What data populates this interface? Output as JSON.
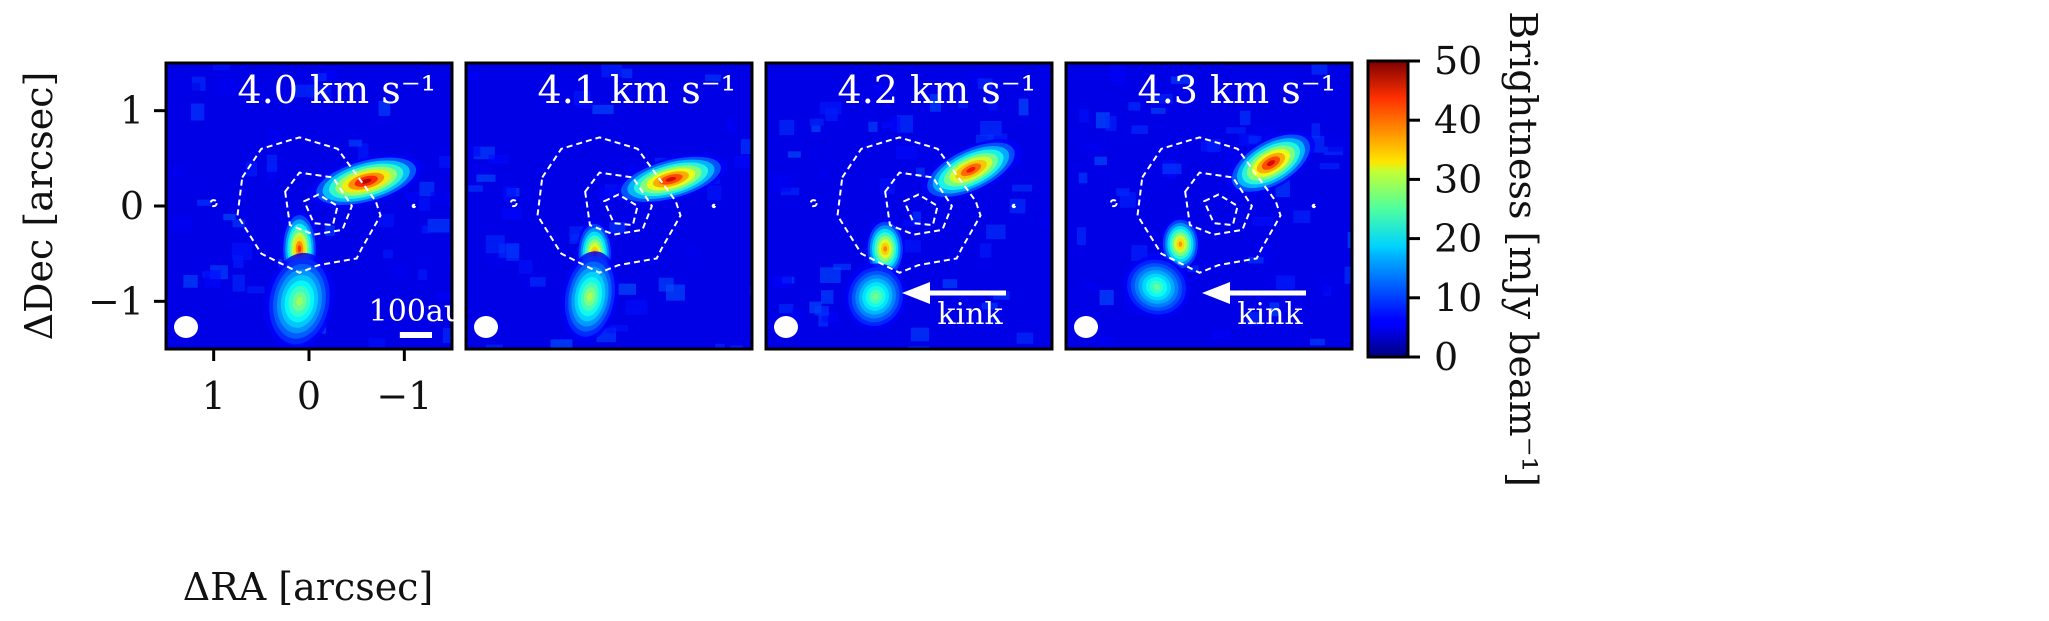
{
  "chart_data": {
    "type": "heatmap",
    "xlabel": "ΔRA [arcsec]",
    "ylabel": "ΔDec [arcsec]",
    "xlim": [
      1.5,
      -1.5
    ],
    "ylim": [
      -1.5,
      1.5
    ],
    "x_ticks": [
      {
        "value": 1,
        "label": "1"
      },
      {
        "value": 0,
        "label": "0"
      },
      {
        "value": -1,
        "label": "−1"
      }
    ],
    "y_ticks": [
      {
        "value": 1,
        "label": "1"
      },
      {
        "value": 0,
        "label": "0"
      },
      {
        "value": -1,
        "label": "−1"
      }
    ],
    "colorbar": {
      "label": "Brightness [mJy beam⁻¹]",
      "range": [
        0,
        50
      ],
      "colormap": "jet",
      "ticks": [
        {
          "value": 0,
          "label": "0"
        },
        {
          "value": 10,
          "label": "10"
        },
        {
          "value": 20,
          "label": "20"
        },
        {
          "value": 30,
          "label": "30"
        },
        {
          "value": 40,
          "label": "40"
        },
        {
          "value": 50,
          "label": "50"
        }
      ]
    },
    "scale_bar": {
      "label": "100au",
      "length_arcsec": 0.75
    },
    "panels": [
      {
        "title": "4.0 km s⁻¹",
        "annotation": "",
        "blobs": [
          {
            "x": -0.6,
            "y": 0.26,
            "sx": 0.38,
            "sy": 0.15,
            "peak": 48,
            "angle": -15
          },
          {
            "x": 0.1,
            "y": -0.45,
            "sx": 0.12,
            "sy": 0.25,
            "peak": 42,
            "angle": 0
          },
          {
            "x": 0.1,
            "y": -1.0,
            "sx": 0.22,
            "sy": 0.32,
            "peak": 27,
            "angle": 10
          }
        ]
      },
      {
        "title": "4.1 km s⁻¹",
        "annotation": "",
        "blobs": [
          {
            "x": -0.65,
            "y": 0.28,
            "sx": 0.38,
            "sy": 0.14,
            "peak": 46,
            "angle": -15
          },
          {
            "x": 0.15,
            "y": -0.5,
            "sx": 0.12,
            "sy": 0.22,
            "peak": 38,
            "angle": 0
          },
          {
            "x": 0.2,
            "y": -0.95,
            "sx": 0.18,
            "sy": 0.3,
            "peak": 28,
            "angle": 10
          }
        ]
      },
      {
        "title": "4.2 km s⁻¹",
        "annotation": "kink",
        "blobs": [
          {
            "x": -0.65,
            "y": 0.38,
            "sx": 0.35,
            "sy": 0.15,
            "peak": 44,
            "angle": -25
          },
          {
            "x": 0.25,
            "y": -0.45,
            "sx": 0.13,
            "sy": 0.2,
            "peak": 38,
            "angle": 0
          },
          {
            "x": 0.35,
            "y": -0.95,
            "sx": 0.2,
            "sy": 0.22,
            "peak": 25,
            "angle": 20
          }
        ]
      },
      {
        "title": "4.3 km s⁻¹",
        "annotation": "kink",
        "blobs": [
          {
            "x": -0.65,
            "y": 0.45,
            "sx": 0.32,
            "sy": 0.16,
            "peak": 46,
            "angle": -30
          },
          {
            "x": 0.3,
            "y": -0.4,
            "sx": 0.13,
            "sy": 0.18,
            "peak": 37,
            "angle": 0
          },
          {
            "x": 0.55,
            "y": -0.85,
            "sx": 0.22,
            "sy": 0.2,
            "peak": 24,
            "angle": 20
          }
        ]
      }
    ]
  }
}
